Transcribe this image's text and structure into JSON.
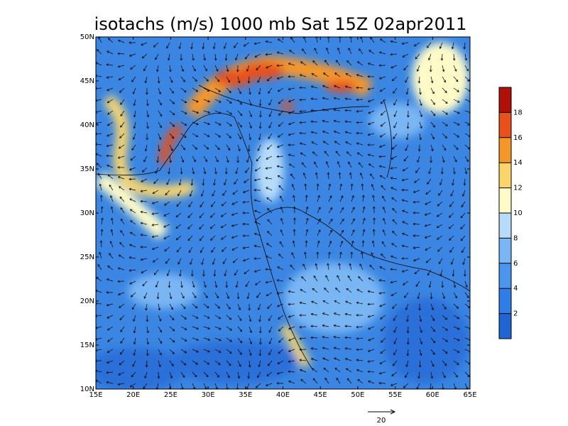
{
  "title": "isotachs (m/s) 1000 mb Sat 15Z 02apr2011",
  "map": {
    "lon_range": [
      15,
      65
    ],
    "lat_range": [
      10,
      50
    ],
    "lon_ticks": [
      {
        "value": 15,
        "label": "15E"
      },
      {
        "value": 20,
        "label": "20E"
      },
      {
        "value": 25,
        "label": "25E"
      },
      {
        "value": 30,
        "label": "30E"
      },
      {
        "value": 35,
        "label": "35E"
      },
      {
        "value": 40,
        "label": "40E"
      },
      {
        "value": 45,
        "label": "45E"
      },
      {
        "value": 50,
        "label": "50E"
      },
      {
        "value": 55,
        "label": "55E"
      },
      {
        "value": 60,
        "label": "60E"
      },
      {
        "value": 65,
        "label": "65E"
      }
    ],
    "lat_ticks": [
      {
        "value": 10,
        "label": "10N"
      },
      {
        "value": 15,
        "label": "15N"
      },
      {
        "value": 20,
        "label": "20N"
      },
      {
        "value": 25,
        "label": "25N"
      },
      {
        "value": 30,
        "label": "30N"
      },
      {
        "value": 35,
        "label": "35N"
      },
      {
        "value": 40,
        "label": "40N"
      },
      {
        "value": 45,
        "label": "45N"
      },
      {
        "value": 50,
        "label": "50N"
      }
    ]
  },
  "colorbar": {
    "levels": [
      2,
      4,
      6,
      8,
      10,
      12,
      14,
      16,
      18
    ],
    "colors": [
      "#1f66d4",
      "#2f7de6",
      "#4a96ee",
      "#7ab6f4",
      "#b6dcfa",
      "#fffbc8",
      "#fbd56a",
      "#f5962a",
      "#e8501c",
      "#b0100a"
    ]
  },
  "reference_vector": {
    "value": 20,
    "label": "20"
  }
}
